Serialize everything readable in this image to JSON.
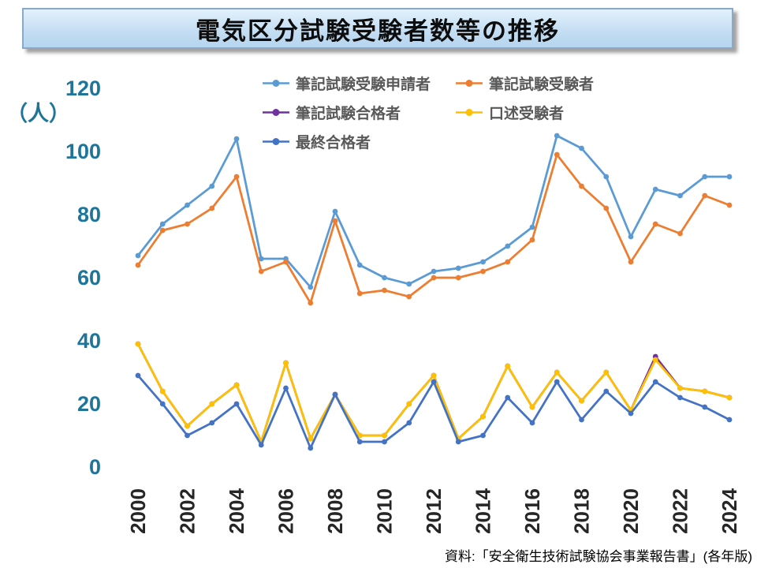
{
  "title": "電気区分試験受験者数等の推移",
  "y_unit_label": "（人）",
  "source_note": "資料:「安全衛生技術試験協会事業報告書」(各年版)",
  "colors": {
    "axis_label": "#1F7599",
    "x_tick_label": "#262626",
    "legend_text": "#595959",
    "title_background": "#C3DDF2",
    "title_border": "#8AA9C9"
  },
  "chart_data": {
    "type": "line",
    "title": "電気区分試験受験者数等の推移",
    "xlabel": "",
    "ylabel": "（人）",
    "ylim": [
      0,
      120
    ],
    "y_ticks": [
      0,
      20,
      40,
      60,
      80,
      100,
      120
    ],
    "grid": false,
    "legend_position": "top-inside",
    "x": [
      2000,
      2001,
      2002,
      2003,
      2004,
      2005,
      2006,
      2007,
      2008,
      2009,
      2010,
      2011,
      2012,
      2013,
      2014,
      2015,
      2016,
      2017,
      2018,
      2019,
      2020,
      2021,
      2022,
      2023,
      2024
    ],
    "x_tick_labels": [
      "2000",
      "2002",
      "2004",
      "2006",
      "2008",
      "2010",
      "2012",
      "2014",
      "2016",
      "2018",
      "2020",
      "2022",
      "2024"
    ],
    "series": [
      {
        "name": "筆記試験受験申請者",
        "color": "#5B9BD5",
        "values": [
          67,
          77,
          83,
          89,
          104,
          66,
          66,
          57,
          81,
          64,
          60,
          58,
          62,
          63,
          65,
          70,
          76,
          105,
          101,
          92,
          73,
          88,
          86,
          92,
          92
        ]
      },
      {
        "name": "筆記試験受験者",
        "color": "#ED7D31",
        "values": [
          64,
          75,
          77,
          82,
          92,
          62,
          65,
          52,
          78,
          55,
          56,
          54,
          60,
          60,
          62,
          65,
          72,
          99,
          89,
          82,
          65,
          77,
          74,
          86,
          83
        ]
      },
      {
        "name": "筆記試験合格者",
        "color": "#7030A0",
        "values": [
          39,
          24,
          13,
          20,
          26,
          8,
          33,
          9,
          23,
          10,
          10,
          20,
          29,
          9,
          16,
          32,
          19,
          30,
          21,
          30,
          18,
          35,
          25,
          24,
          22
        ]
      },
      {
        "name": "口述受験者",
        "color": "#FFC000",
        "values": [
          39,
          24,
          13,
          20,
          26,
          8,
          33,
          9,
          23,
          10,
          10,
          20,
          29,
          9,
          16,
          32,
          19,
          30,
          21,
          30,
          18,
          34,
          25,
          24,
          22
        ]
      },
      {
        "name": "最終合格者",
        "color": "#4472C4",
        "values": [
          29,
          20,
          10,
          14,
          20,
          7,
          25,
          6,
          23,
          8,
          8,
          14,
          27,
          8,
          10,
          22,
          14,
          27,
          15,
          24,
          17,
          27,
          22,
          19,
          15
        ]
      }
    ]
  }
}
